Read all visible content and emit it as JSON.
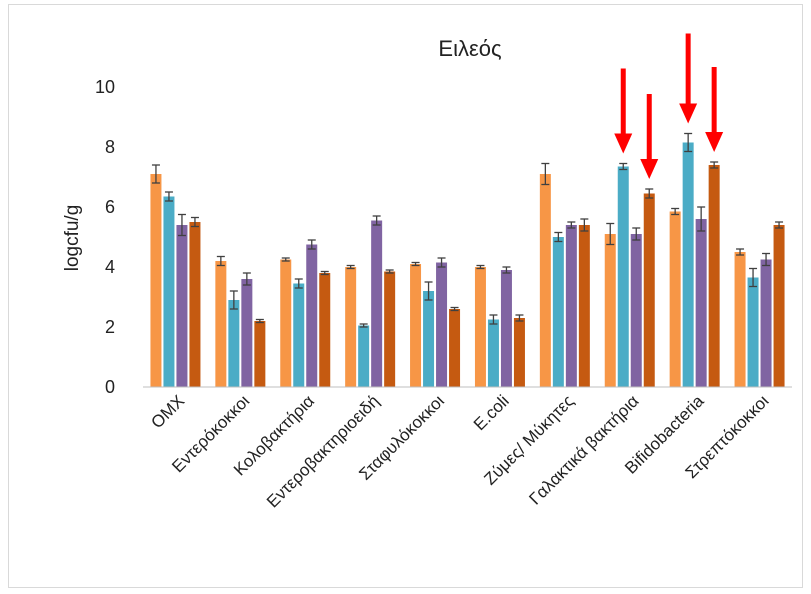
{
  "chart_data": {
    "type": "bar",
    "title": "Ειλεός",
    "ylabel": "logcfu/g",
    "xlabel": "",
    "ylim": [
      0,
      10
    ],
    "yticks": [
      "0",
      "2",
      "4",
      "6",
      "8",
      "10"
    ],
    "grid": false,
    "legend": "none",
    "categories": [
      "OMX",
      "Εντερόκοκκοι",
      "Κολοβακτήρια",
      "Εντεροβακτηριοειδή",
      "Σταφυλόκοκκοι",
      "E.coli",
      "Ζύμες/ Μύκητες",
      "Γαλακτικά βακτήρια",
      "Bifidobacteria",
      "Στρεπτόκοκκοι"
    ],
    "series": [
      {
        "color": "#f79646",
        "values": [
          7.1,
          4.2,
          4.25,
          4.0,
          4.1,
          4.0,
          7.1,
          5.1,
          5.85,
          4.5
        ],
        "errors": [
          0.3,
          0.15,
          0.05,
          0.05,
          0.05,
          0.05,
          0.35,
          0.35,
          0.1,
          0.1
        ]
      },
      {
        "color": "#4bacc6",
        "values": [
          6.35,
          2.9,
          3.45,
          2.05,
          3.2,
          2.25,
          5.0,
          7.35,
          8.15,
          3.65
        ],
        "errors": [
          0.15,
          0.3,
          0.15,
          0.05,
          0.3,
          0.15,
          0.15,
          0.1,
          0.3,
          0.3
        ]
      },
      {
        "color": "#8064a2",
        "values": [
          5.4,
          3.6,
          4.75,
          5.55,
          4.15,
          3.9,
          5.4,
          5.1,
          5.6,
          4.25
        ],
        "errors": [
          0.35,
          0.2,
          0.15,
          0.15,
          0.15,
          0.1,
          0.1,
          0.2,
          0.4,
          0.2
        ]
      },
      {
        "color": "#c55a11",
        "values": [
          5.5,
          2.2,
          3.8,
          3.85,
          2.6,
          2.3,
          5.4,
          6.45,
          7.4,
          5.4
        ],
        "errors": [
          0.15,
          0.05,
          0.05,
          0.05,
          0.05,
          0.1,
          0.2,
          0.15,
          0.1,
          0.1
        ]
      }
    ],
    "annotations": [
      {
        "type": "arrow",
        "color": "#ff0000",
        "category": "Γαλακτικά βακτήρια",
        "series_index": 1
      },
      {
        "type": "arrow",
        "color": "#ff0000",
        "category": "Γαλακτικά βακτήρια",
        "series_index": 3
      },
      {
        "type": "arrow",
        "color": "#ff0000",
        "category": "Bifidobacteria",
        "series_index": 1
      },
      {
        "type": "arrow",
        "color": "#ff0000",
        "category": "Bifidobacteria",
        "series_index": 3
      }
    ]
  }
}
